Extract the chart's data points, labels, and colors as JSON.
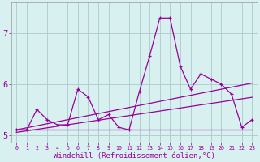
{
  "x": [
    0,
    1,
    2,
    3,
    4,
    5,
    6,
    7,
    8,
    9,
    10,
    11,
    12,
    13,
    14,
    15,
    16,
    17,
    18,
    19,
    20,
    21,
    22,
    23
  ],
  "y_main": [
    5.1,
    5.1,
    5.5,
    5.3,
    5.2,
    5.2,
    5.9,
    5.75,
    5.3,
    5.4,
    5.15,
    5.1,
    5.85,
    6.55,
    7.3,
    7.3,
    6.35,
    5.9,
    6.2,
    6.1,
    6.0,
    5.8,
    5.15,
    5.3
  ],
  "y_trend1": [
    5.05,
    5.08,
    5.11,
    5.14,
    5.17,
    5.2,
    5.23,
    5.26,
    5.29,
    5.32,
    5.35,
    5.38,
    5.41,
    5.44,
    5.47,
    5.5,
    5.53,
    5.56,
    5.59,
    5.62,
    5.65,
    5.68,
    5.71,
    5.74
  ],
  "y_trend2": [
    5.1,
    5.14,
    5.18,
    5.22,
    5.26,
    5.3,
    5.34,
    5.38,
    5.42,
    5.46,
    5.5,
    5.54,
    5.58,
    5.62,
    5.66,
    5.7,
    5.74,
    5.78,
    5.82,
    5.86,
    5.9,
    5.94,
    5.98,
    6.02
  ],
  "y_flat": [
    5.1,
    5.1,
    5.1,
    5.1,
    5.1,
    5.1,
    5.1,
    5.1,
    5.1,
    5.1,
    5.1,
    5.1,
    5.1,
    5.1,
    5.1,
    5.1,
    5.1,
    5.1,
    5.1,
    5.1,
    5.1,
    5.1,
    5.1,
    5.1
  ],
  "line_color": "#990099",
  "bg_color": "#d8f0f0",
  "grid_color": "#aacccc",
  "xlabel": "Windchill (Refroidissement éolien,°C)",
  "xlim": [
    -0.5,
    23.5
  ],
  "ylim": [
    4.85,
    7.6
  ],
  "yticks": [
    5,
    6,
    7
  ],
  "xtick_labels": [
    "0",
    "1",
    "2",
    "3",
    "4",
    "5",
    "6",
    "7",
    "8",
    "9",
    "10",
    "11",
    "12",
    "13",
    "14",
    "15",
    "16",
    "17",
    "18",
    "19",
    "20",
    "21",
    "22",
    "23"
  ]
}
